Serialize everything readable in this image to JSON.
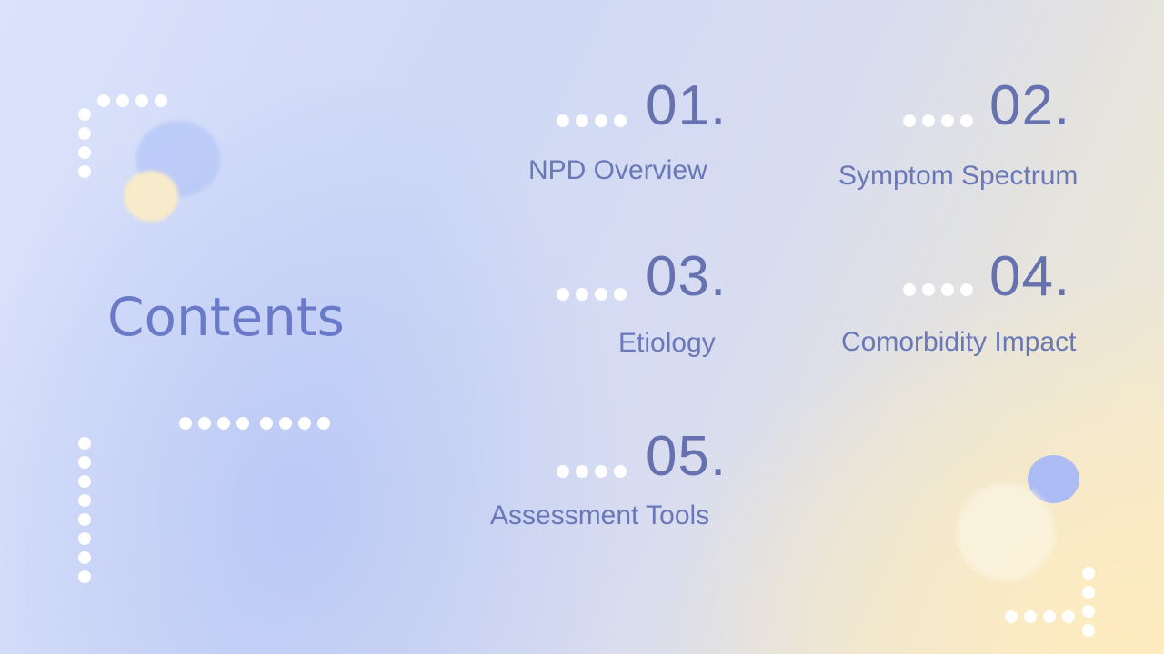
{
  "title": "Contents",
  "items": [
    {
      "number": "01.",
      "label": "NPD Overview"
    },
    {
      "number": "02.",
      "label": "Symptom Spectrum"
    },
    {
      "number": "03.",
      "label": "Etiology"
    },
    {
      "number": "04.",
      "label": "Comorbidity Impact"
    },
    {
      "number": "05.",
      "label": "Assessment Tools"
    }
  ],
  "colors": {
    "title": "#6a7ac8",
    "number": "#6672b0",
    "label": "#6a78b8",
    "dot": "#ffffff",
    "accent_blue": "#aebcf6",
    "accent_yellow": "#f7ecc6"
  }
}
